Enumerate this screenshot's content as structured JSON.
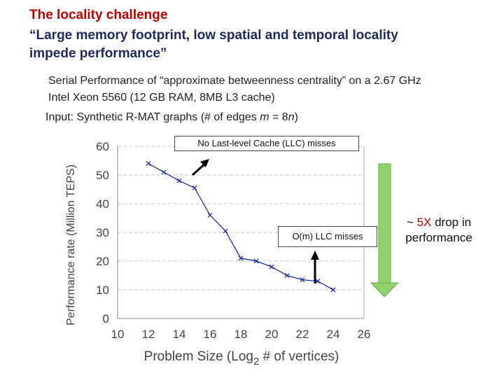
{
  "slide": {
    "title": "The locality challenge",
    "quote_line1": "“Large memory footprint, low spatial and temporal  locality",
    "quote_line2": "impede performance”",
    "description_line1": "Serial Performance of “approximate betweenness centrality” on a 2.67 GHz",
    "description_line2": "Intel Xeon 5560 (12 GB RAM, 8MB L3 cache)",
    "input_prefix": "Input: Synthetic R-MAT graphs (# of edges ",
    "input_m": "m",
    "input_eq": " = 8",
    "input_n": "n",
    "input_suffix": ")"
  },
  "annotations": {
    "no_llc": "No Last-level Cache (LLC) misses",
    "om_llc": "O(m) LLC misses",
    "drop_prefix": "~ ",
    "drop_value": "5X",
    "drop_suffix": " drop in performance"
  },
  "colors": {
    "series": "#1f2ca0",
    "grid": "#c8c8c8",
    "green_arrow": "#8fd36a",
    "title_red": "#c00000"
  },
  "chart_data": {
    "type": "line",
    "xlabel_prefix": "Problem Size (Log",
    "xlabel_sub": "2",
    "xlabel_suffix": " # of vertices)",
    "ylabel": "Performance rate (Million TEPS)",
    "xlim": [
      10,
      26
    ],
    "ylim": [
      0,
      60
    ],
    "xticks": [
      10,
      12,
      14,
      16,
      18,
      20,
      22,
      24,
      26
    ],
    "yticks": [
      0,
      10,
      20,
      30,
      40,
      50,
      60
    ],
    "grid": true,
    "series": [
      {
        "x": [
          12,
          13,
          14,
          15,
          16,
          17,
          18,
          19,
          20,
          21,
          22,
          23,
          24
        ],
        "y": [
          54,
          51,
          48,
          45.5,
          36,
          30.5,
          21,
          20,
          18,
          15,
          13.5,
          13,
          10
        ]
      }
    ]
  }
}
